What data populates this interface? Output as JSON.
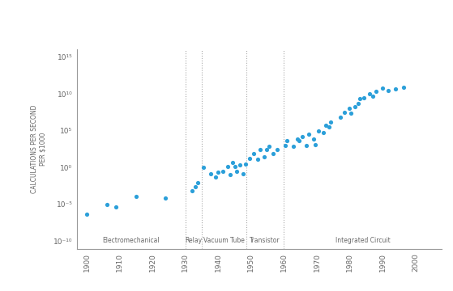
{
  "chart_data": {
    "type": "scatter",
    "y_label": "CALCULATIONS PER SECOND\nPER $1000",
    "log": "y",
    "color": "#2b9fd9",
    "marker": "o",
    "x": [
      1900.0,
      1906.2,
      1908.9,
      1915.1,
      1924.0,
      1931.9,
      1932.9,
      1933.8,
      1935.5,
      1937.6,
      1939.1,
      1940.0,
      1941.5,
      1942.9,
      1943.6,
      1944.4,
      1945.1,
      1945.6,
      1946.5,
      1947.5,
      1948.4,
      1949.6,
      1950.8,
      1952.0,
      1952.8,
      1954.0,
      1954.7,
      1955.4,
      1956.6,
      1958.0,
      1960.4,
      1960.9,
      1962.8,
      1964.0,
      1964.7,
      1965.5,
      1966.9,
      1967.6,
      1969.1,
      1969.5,
      1970.5,
      1971.9,
      1972.7,
      1973.6,
      1974.3,
      1977.2,
      1978.4,
      1979.9,
      1980.3,
      1981.5,
      1982.7,
      1983.2,
      1984.4,
      1986.1,
      1987.1,
      1988.0,
      1989.9,
      1991.6,
      1994.0,
      1996.4
    ],
    "values": [
      5e-07,
      1e-05,
      4.5e-06,
      0.00014,
      8.5e-05,
      0.0007,
      0.0028,
      0.008,
      1,
      0.15,
      0.05,
      0.26,
      0.34,
      1.3,
      0.12,
      5,
      1.3,
      0.34,
      2.2,
      0.15,
      3,
      19,
      72,
      14,
      275,
      32,
      275,
      810,
      72,
      275,
      1050,
      4000,
      810,
      6900,
      4000,
      15500,
      1050,
      34000,
      6900,
      1400,
      100000,
      59000,
      500000,
      300000,
      1400000,
      7000000,
      28000000,
      100000000,
      21000000,
      180000000,
      500000000,
      2000000000,
      2600000000,
      10000000000,
      4500000000,
      22000000000,
      65000000000,
      30000000000,
      50000000000,
      85000000000
    ],
    "xlim": [
      1897,
      2008
    ],
    "xticks": [
      1900,
      1910,
      1920,
      1930,
      1940,
      1950,
      1960,
      1970,
      1980,
      1990,
      2000
    ],
    "ylim": [
      1e-11,
      1e+16
    ],
    "yticks": [
      {
        "value": 1e-10,
        "label": "10⁻¹⁰"
      },
      {
        "value": 1e-05,
        "label": "10⁻⁵"
      },
      {
        "value": 1,
        "label": "10⁰"
      },
      {
        "value": 100000,
        "label": "10⁵"
      },
      {
        "value": 10000000000,
        "label": "10¹⁰"
      },
      {
        "value": 1000000000000000.0,
        "label": "10¹⁵"
      }
    ],
    "grid": false,
    "era_labels": [
      "Electromechanical",
      "Relay",
      "Vacuum Tube",
      "Transistor",
      "Integrated Circuit"
    ],
    "era_boundaries": [
      1930,
      1935,
      1948.5,
      1960
    ]
  }
}
